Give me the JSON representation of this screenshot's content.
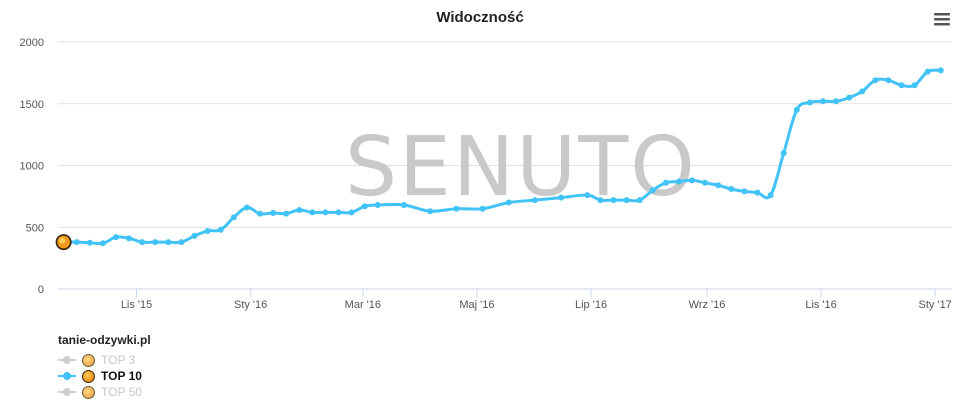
{
  "chart_data": {
    "type": "line",
    "title": "Widoczność",
    "xlabel": "",
    "ylabel": "",
    "ylim": [
      0,
      2000
    ],
    "yticks": [
      0,
      500,
      1000,
      1500,
      2000
    ],
    "x_tick_labels": [
      "Lis '15",
      "Sty '16",
      "Mar '16",
      "Maj '16",
      "Lip '16",
      "Wrz '16",
      "Lis '16",
      "Sty '17"
    ],
    "x_tick_dates": [
      "2015-11-01",
      "2016-01-01",
      "2016-03-01",
      "2016-05-01",
      "2016-07-01",
      "2016-09-01",
      "2016-11-01",
      "2017-01-01"
    ],
    "xlim": [
      "2015-09-20",
      "2017-01-10"
    ],
    "grid": true,
    "legend_position": "bottom-left",
    "series": [
      {
        "name": "TOP 10",
        "color": "#42c3f7",
        "x": [
          "2015-09-23",
          "2015-09-30",
          "2015-10-07",
          "2015-10-14",
          "2015-10-21",
          "2015-10-28",
          "2015-11-04",
          "2015-11-11",
          "2015-11-18",
          "2015-11-25",
          "2015-12-02",
          "2015-12-09",
          "2015-12-16",
          "2015-12-23",
          "2015-12-30",
          "2016-01-06",
          "2016-01-13",
          "2016-01-20",
          "2016-01-27",
          "2016-02-03",
          "2016-02-10",
          "2016-02-17",
          "2016-02-24",
          "2016-03-02",
          "2016-03-09",
          "2016-03-23",
          "2016-04-06",
          "2016-04-20",
          "2016-05-04",
          "2016-05-18",
          "2016-06-01",
          "2016-06-15",
          "2016-06-29",
          "2016-07-06",
          "2016-07-13",
          "2016-07-20",
          "2016-07-27",
          "2016-08-03",
          "2016-08-10",
          "2016-08-17",
          "2016-08-24",
          "2016-08-31",
          "2016-09-07",
          "2016-09-14",
          "2016-09-21",
          "2016-09-28",
          "2016-10-05",
          "2016-10-12",
          "2016-10-19",
          "2016-10-26",
          "2016-11-02",
          "2016-11-09",
          "2016-11-16",
          "2016-11-23",
          "2016-11-30",
          "2016-12-07",
          "2016-12-14",
          "2016-12-21",
          "2016-12-28",
          "2017-01-04"
        ],
        "values": [
          380,
          380,
          375,
          370,
          420,
          410,
          380,
          380,
          380,
          380,
          430,
          470,
          480,
          580,
          660,
          610,
          615,
          610,
          640,
          620,
          620,
          620,
          620,
          670,
          680,
          680,
          630,
          650,
          650,
          700,
          720,
          740,
          760,
          720,
          720,
          720,
          720,
          800,
          860,
          870,
          880,
          860,
          840,
          810,
          790,
          780,
          760,
          1100,
          1450,
          1510,
          1520,
          1520,
          1550,
          1600,
          1690,
          1690,
          1650,
          1650,
          1760,
          1770
        ]
      }
    ]
  },
  "watermark": "SENUTO",
  "legend": {
    "title": "tanie-odzywki.pl",
    "items": [
      {
        "label": "TOP 3",
        "active": false
      },
      {
        "label": "TOP 10",
        "active": true
      },
      {
        "label": "TOP 50",
        "active": false
      }
    ]
  },
  "menu_icon": "hamburger-menu-icon"
}
